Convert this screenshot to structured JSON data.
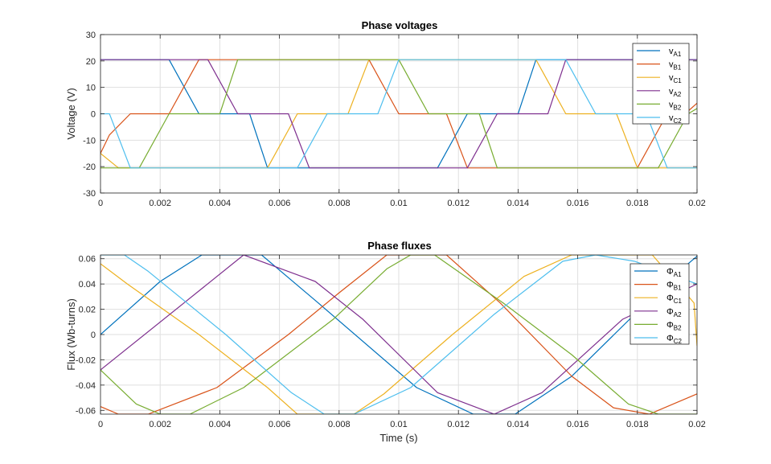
{
  "chart_data": [
    {
      "type": "line",
      "title": "Phase voltages",
      "xlabel": "",
      "ylabel": "Voltage (V)",
      "xlim": [
        0,
        0.02
      ],
      "ylim": [
        -30,
        30
      ],
      "xticks": [
        "0",
        "0.002",
        "0.004",
        "0.006",
        "0.008",
        "0.01",
        "0.012",
        "0.014",
        "0.016",
        "0.018",
        "0.02"
      ],
      "yticks": [
        "-30",
        "-20",
        "-10",
        "0",
        "10",
        "20",
        "30"
      ],
      "grid": true,
      "legend_position": "top-right",
      "series": [
        {
          "name": "vA1",
          "label_main": "v",
          "label_sub": "A1",
          "color": "#0072BD",
          "x": [
            0,
            0.0016,
            0.0023,
            0.0033,
            0.004,
            0.005,
            0.0056,
            0.0066,
            0.0073,
            0.0106,
            0.0113,
            0.0123,
            0.013,
            0.014,
            0.0146,
            0.0156,
            0.0163,
            0.02
          ],
          "y": [
            20.5,
            20.5,
            20.5,
            0,
            0,
            0,
            -20.5,
            -20.5,
            -20.5,
            -20.5,
            -20.5,
            0,
            0,
            0,
            20.5,
            20.5,
            20.5,
            20.5
          ]
        },
        {
          "name": "vB1",
          "label_main": "v",
          "label_sub": "B1",
          "color": "#D95319",
          "x": [
            0,
            0.0003,
            0.001,
            0.0016,
            0.0023,
            0.0033,
            0.0083,
            0.009,
            0.01,
            0.0106,
            0.0116,
            0.0123,
            0.0173,
            0.018,
            0.019,
            0.0196,
            0.02
          ],
          "y": [
            -15,
            -8,
            0,
            0,
            0,
            20.5,
            20.5,
            20.5,
            0,
            0,
            0,
            -20.5,
            -20.5,
            -20.5,
            0,
            0,
            4
          ]
        },
        {
          "name": "vC1",
          "label_main": "v",
          "label_sub": "C1",
          "color": "#EDB120",
          "x": [
            0,
            0.0006,
            0.0016,
            0.005,
            0.0056,
            0.0066,
            0.0073,
            0.0083,
            0.009,
            0.014,
            0.0146,
            0.0156,
            0.0163,
            0.0173,
            0.018,
            0.02
          ],
          "y": [
            -15,
            -20.5,
            -20.5,
            -20.5,
            -20.5,
            0,
            0,
            0,
            20.5,
            20.5,
            20.5,
            0,
            0,
            0,
            -20.5,
            -20.5
          ]
        },
        {
          "name": "vA2",
          "label_main": "v",
          "label_sub": "A2",
          "color": "#7E2F8E",
          "x": [
            0,
            0.0027,
            0.0036,
            0.0046,
            0.0053,
            0.0063,
            0.007,
            0.0077,
            0.0117,
            0.0123,
            0.0133,
            0.014,
            0.015,
            0.0156,
            0.02
          ],
          "y": [
            20.5,
            20.5,
            20.5,
            0,
            0,
            0,
            -20.5,
            -20.5,
            -20.5,
            -20.5,
            0,
            0,
            0,
            20.5,
            20.5
          ]
        },
        {
          "name": "vB2",
          "label_main": "v",
          "label_sub": "B2",
          "color": "#77AC30",
          "x": [
            0,
            0.0006,
            0.0013,
            0.0023,
            0.003,
            0.004,
            0.0046,
            0.0093,
            0.01,
            0.011,
            0.0117,
            0.0127,
            0.0133,
            0.018,
            0.0187,
            0.0197,
            0.02
          ],
          "y": [
            -20.5,
            -20.5,
            -20.5,
            0,
            0,
            0,
            20.5,
            20.5,
            20.5,
            0,
            0,
            0,
            -20.5,
            -20.5,
            -20.5,
            0,
            2
          ]
        },
        {
          "name": "vC2",
          "label_main": "v",
          "label_sub": "C2",
          "color": "#4DBEEE",
          "x": [
            0,
            0.0003,
            0.001,
            0.006,
            0.0066,
            0.0076,
            0.0083,
            0.0093,
            0.01,
            0.0133,
            0.014,
            0.015,
            0.0156,
            0.0166,
            0.0173,
            0.0183,
            0.019,
            0.02
          ],
          "y": [
            0,
            0,
            -20.5,
            -20.5,
            -20.5,
            0,
            0,
            0,
            20.5,
            20.5,
            20.5,
            20.5,
            20.5,
            0,
            0,
            0,
            -20.5,
            -20.5
          ]
        }
      ]
    },
    {
      "type": "line",
      "title": "Phase fluxes",
      "xlabel": "Time (s)",
      "ylabel": "Flux (Wb-turns)",
      "xlim": [
        0,
        0.02
      ],
      "ylim": [
        -0.063,
        0.063
      ],
      "xticks": [
        "0",
        "0.002",
        "0.004",
        "0.006",
        "0.008",
        "0.01",
        "0.012",
        "0.014",
        "0.016",
        "0.018",
        "0.02"
      ],
      "yticks": [
        "-0.06",
        "-0.04",
        "-0.02",
        "0",
        "0.02",
        "0.04",
        "0.06"
      ],
      "grid": true,
      "legend_position": "top-right",
      "series": [
        {
          "name": "ΦA1",
          "label_main": "Φ",
          "label_sub": "A1",
          "color": "#0072BD",
          "x": [
            0,
            0.002,
            0.0034,
            0.004,
            0.0054,
            0.0073,
            0.0106,
            0.0125,
            0.0139,
            0.0158,
            0.0192,
            0.02
          ],
          "y": [
            0,
            0.042,
            0.063,
            0.063,
            0.063,
            0.025,
            -0.042,
            -0.063,
            -0.063,
            -0.033,
            0.046,
            0.062
          ]
        },
        {
          "name": "ΦB1",
          "label_main": "Φ",
          "label_sub": "B1",
          "color": "#D95319",
          "x": [
            0,
            0.0006,
            0.0016,
            0.0039,
            0.0063,
            0.008,
            0.0096,
            0.0104,
            0.0116,
            0.0134,
            0.0158,
            0.0172,
            0.0184,
            0.02
          ],
          "y": [
            -0.057,
            -0.063,
            -0.063,
            -0.042,
            0,
            0.033,
            0.063,
            0.063,
            0.063,
            0.025,
            -0.033,
            -0.058,
            -0.063,
            -0.047
          ]
        },
        {
          "name": "ΦC1",
          "label_main": "Φ",
          "label_sub": "C1",
          "color": "#EDB120",
          "x": [
            0,
            0.0009,
            0.0033,
            0.0056,
            0.0066,
            0.0078,
            0.0085,
            0.0095,
            0.0118,
            0.0142,
            0.0158,
            0.0175,
            0.0185,
            0.0199,
            0.02
          ],
          "y": [
            0.056,
            0.04,
            0,
            -0.042,
            -0.063,
            -0.063,
            -0.063,
            -0.047,
            0,
            0.046,
            0.063,
            0.063,
            0.063,
            0.025,
            -0.009
          ]
        },
        {
          "name": "ΦA2",
          "label_main": "Φ",
          "label_sub": "A2",
          "color": "#7E2F8E",
          "x": [
            0,
            0.0028,
            0.0048,
            0.0072,
            0.0088,
            0.0113,
            0.0132,
            0.0148,
            0.0175,
            0.02
          ],
          "y": [
            -0.028,
            0.025,
            0.063,
            0.042,
            0.012,
            -0.046,
            -0.063,
            -0.046,
            0.012,
            0.04
          ]
        },
        {
          "name": "ΦB2",
          "label_main": "Φ",
          "label_sub": "B2",
          "color": "#77AC30",
          "x": [
            0,
            0.0012,
            0.002,
            0.003,
            0.0048,
            0.0078,
            0.0096,
            0.0104,
            0.0112,
            0.0135,
            0.0158,
            0.0177,
            0.0187,
            0.0195,
            0.02
          ],
          "y": [
            -0.028,
            -0.055,
            -0.063,
            -0.063,
            -0.042,
            0.012,
            0.052,
            0.063,
            0.063,
            0.025,
            -0.016,
            -0.055,
            -0.063,
            -0.063,
            -0.063
          ]
        },
        {
          "name": "ΦC2",
          "label_main": "Φ",
          "label_sub": "C2",
          "color": "#4DBEEE",
          "x": [
            0,
            0.0008,
            0.0016,
            0.0042,
            0.0064,
            0.0075,
            0.0085,
            0.0104,
            0.0132,
            0.0155,
            0.0166,
            0.0179,
            0.02
          ],
          "y": [
            0.063,
            0.063,
            0.05,
            0,
            -0.046,
            -0.063,
            -0.063,
            -0.042,
            0.016,
            0.058,
            0.063,
            0.058,
            0.04
          ]
        }
      ]
    }
  ]
}
